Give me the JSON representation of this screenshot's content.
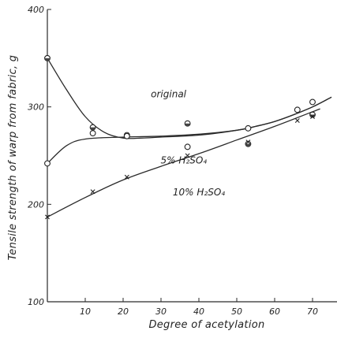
{
  "chart_data": {
    "type": "scatter",
    "title": "",
    "xlabel": "Degree of acetylation",
    "ylabel": "Tensile strength of warp from fabric, g",
    "xlim": [
      0,
      75
    ],
    "ylim": [
      100,
      400
    ],
    "x_ticks": [
      {
        "value": 10,
        "label": "10"
      },
      {
        "value": 20,
        "label": "20"
      },
      {
        "value": 30,
        "label": "30"
      },
      {
        "value": 40,
        "label": "40"
      },
      {
        "value": 50,
        "label": "50"
      },
      {
        "value": 60,
        "label": "60"
      },
      {
        "value": 70,
        "label": "70"
      }
    ],
    "y_ticks": [
      {
        "value": 100,
        "label": "100"
      },
      {
        "value": 200,
        "label": "200"
      },
      {
        "value": 300,
        "label": "300"
      },
      {
        "value": 400,
        "label": "400"
      }
    ],
    "grid": false,
    "series": [
      {
        "name": "original",
        "marker": "half-filled circle",
        "points": [
          [
            0,
            350
          ],
          [
            12,
            279
          ],
          [
            21,
            271
          ],
          [
            37,
            283
          ],
          [
            53,
            262
          ],
          [
            70,
            292
          ]
        ],
        "curve": [
          [
            0,
            350
          ],
          [
            5,
            318
          ],
          [
            10,
            290
          ],
          [
            15,
            274
          ],
          [
            20,
            268
          ],
          [
            25,
            268
          ],
          [
            30,
            269
          ],
          [
            40,
            271
          ],
          [
            50,
            276
          ],
          [
            55,
            280
          ],
          [
            60,
            285
          ],
          [
            65,
            292
          ],
          [
            70,
            300
          ],
          [
            75,
            310
          ]
        ]
      },
      {
        "name": "5% H₂SO₄",
        "marker": "open circle",
        "points": [
          [
            0,
            242
          ],
          [
            12,
            273
          ],
          [
            21,
            270
          ],
          [
            37,
            259
          ],
          [
            53,
            278
          ],
          [
            66,
            297
          ],
          [
            70,
            305
          ]
        ],
        "curve": [
          [
            0,
            242
          ],
          [
            5,
            260
          ],
          [
            10,
            267
          ],
          [
            20,
            269
          ],
          [
            30,
            270
          ],
          [
            40,
            272
          ],
          [
            50,
            276
          ],
          [
            55,
            280
          ],
          [
            60,
            285
          ],
          [
            65,
            292
          ],
          [
            70,
            300
          ],
          [
            75,
            310
          ]
        ]
      },
      {
        "name": "10% H₂SO₄",
        "marker": "cross",
        "points": [
          [
            0,
            187
          ],
          [
            12,
            213
          ],
          [
            21,
            228
          ],
          [
            37,
            250
          ],
          [
            53,
            264
          ],
          [
            66,
            286
          ],
          [
            70,
            290
          ]
        ],
        "curve": [
          [
            0,
            187
          ],
          [
            10,
            207
          ],
          [
            20,
            225
          ],
          [
            30,
            239
          ],
          [
            40,
            252
          ],
          [
            50,
            266
          ],
          [
            60,
            280
          ],
          [
            72,
            298
          ]
        ]
      }
    ],
    "annotations": [
      {
        "text": "original",
        "x": 32,
        "y": 310
      },
      {
        "text": "5% H₂SO₄",
        "x": 36,
        "y": 242
      },
      {
        "text": "10% H₂SO₄",
        "x": 40,
        "y": 209
      }
    ]
  }
}
